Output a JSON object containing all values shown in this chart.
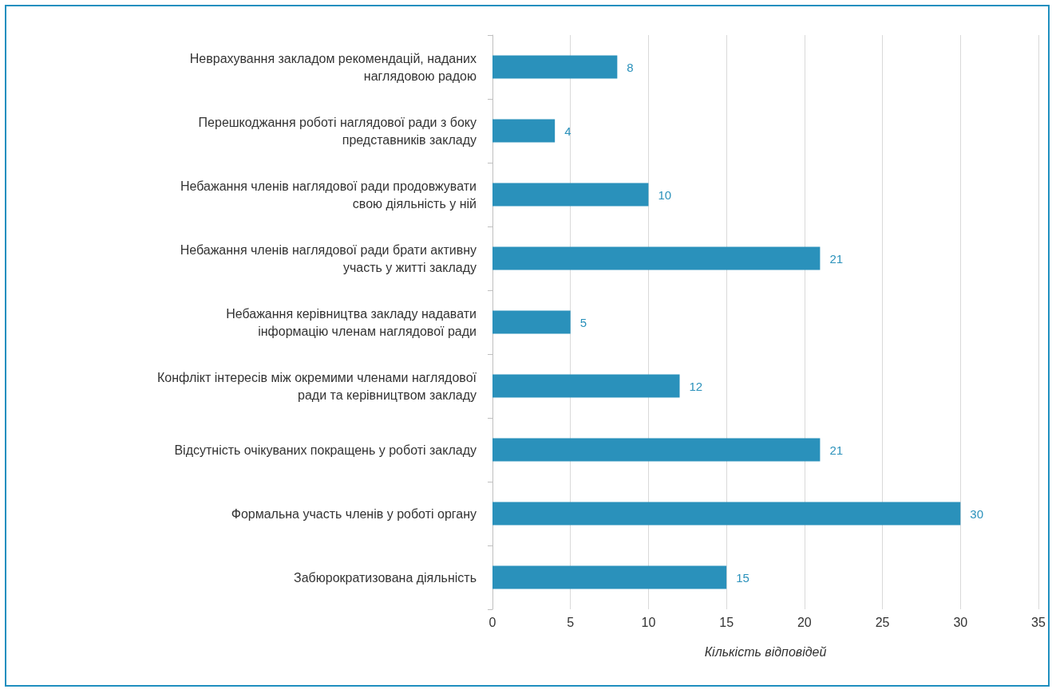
{
  "chart_data": {
    "type": "bar",
    "orientation": "horizontal",
    "xlabel": "Кількість відповідей",
    "categories": [
      "Неврахування закладом рекомендацій, наданих наглядовою радою",
      "Перешкоджання роботі наглядової ради з боку представників закладу",
      "Небажання членів наглядової ради продовжувати свою діяльність у ній",
      "Небажання членів наглядової ради брати активну участь у житті закладу",
      "Небажання керівництва закладу надавати інформацію членам наглядової ради",
      "Конфлікт інтересів між окремими членами наглядової ради та керівництвом закладу",
      "Відсутність очікуваних покращень у роботі закладу",
      "Формальна участь членів у роботі органу",
      "Забюрократизована діяльність"
    ],
    "values": [
      8,
      4,
      10,
      21,
      5,
      12,
      21,
      30,
      15
    ],
    "color": "#2a91bb",
    "xlim": [
      0,
      35
    ],
    "xticks": [
      0,
      5,
      10,
      15,
      20,
      25,
      30,
      35
    ],
    "grid": "x",
    "data_labels": true
  }
}
